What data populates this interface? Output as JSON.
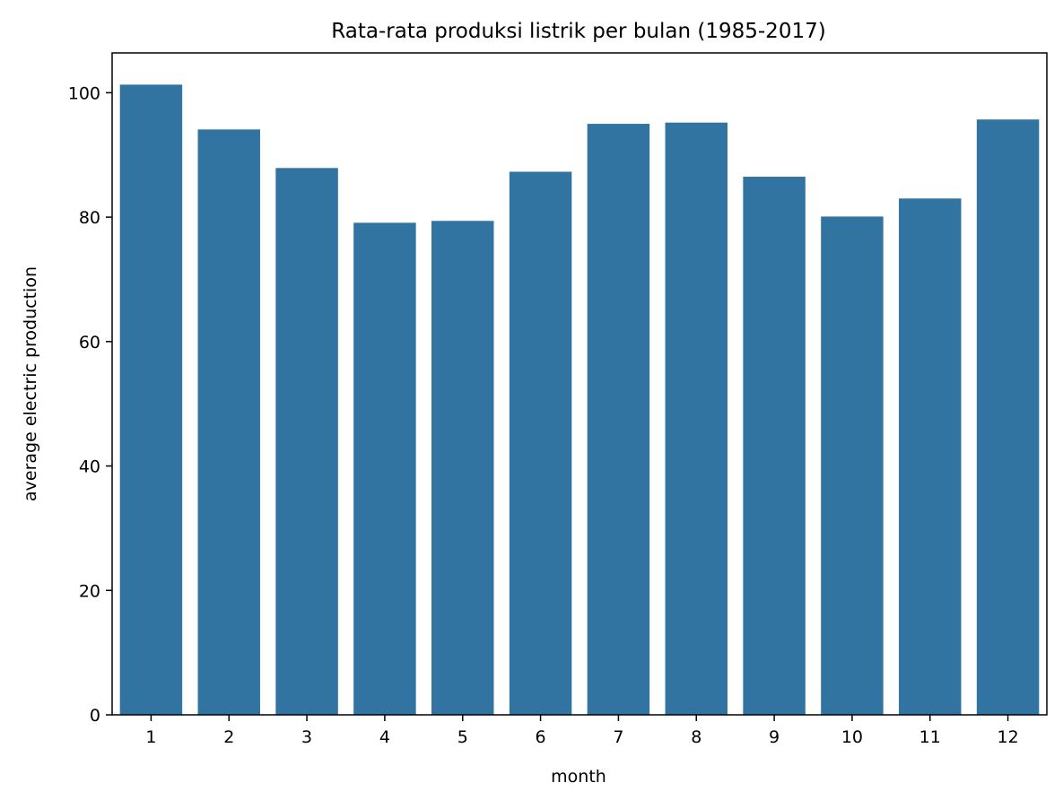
{
  "chart_data": {
    "type": "bar",
    "title": "Rata-rata produksi listrik per bulan (1985-2017)",
    "xlabel": "month",
    "ylabel": "average electric production",
    "categories": [
      "1",
      "2",
      "3",
      "4",
      "5",
      "6",
      "7",
      "8",
      "9",
      "10",
      "11",
      "12"
    ],
    "values": [
      101.3,
      94.1,
      87.9,
      79.1,
      79.4,
      87.3,
      95.0,
      95.2,
      86.5,
      80.1,
      83.0,
      95.7
    ],
    "ylim": [
      0,
      106.4
    ],
    "yticks": [
      0,
      20,
      40,
      60,
      80,
      100
    ],
    "grid": false,
    "bar_color": "#3274a1"
  }
}
